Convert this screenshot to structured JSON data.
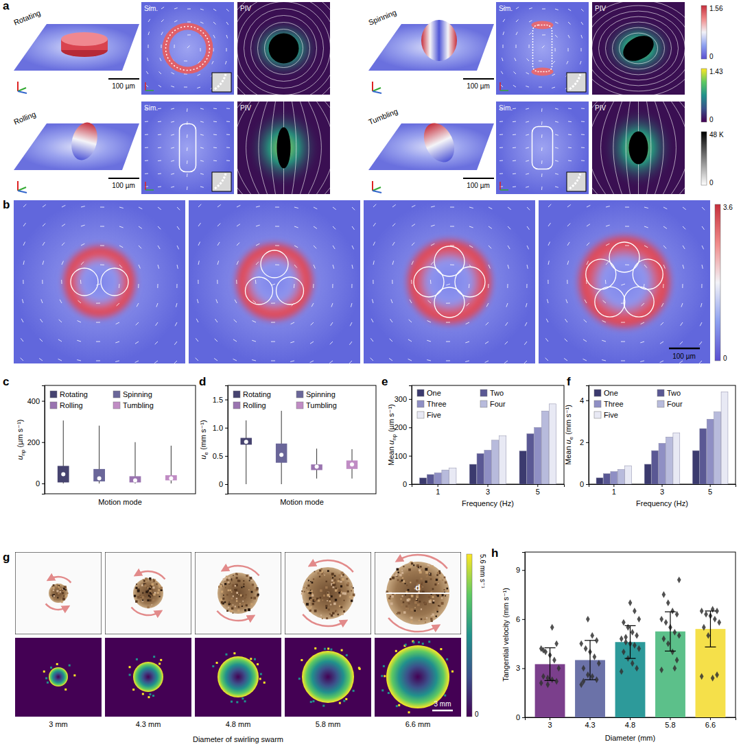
{
  "panel_letters": [
    "a",
    "b",
    "c",
    "d",
    "e",
    "f",
    "g",
    "h"
  ],
  "panel_a": {
    "modes": [
      {
        "name": "Rotating",
        "sim": "Sim.",
        "piv": "PIV",
        "scale_bar": "100 µm"
      },
      {
        "name": "Spinning",
        "sim": "Sim.",
        "piv": "PIV",
        "scale_bar": "100 µm"
      },
      {
        "name": "Rolling",
        "sim": "Sim.",
        "piv": "PIV",
        "scale_bar": "100 µm"
      },
      {
        "name": "Tumbling",
        "sim": "Sim.",
        "piv": "PIV",
        "scale_bar": "100 µm"
      }
    ],
    "colorbars": [
      {
        "ticks": [
          0,
          1.56
        ]
      },
      {
        "ticks": [
          0,
          1.43
        ]
      },
      {
        "ticks": [
          0,
          {
            "value": 48000,
            "label": "48 K"
          }
        ]
      }
    ]
  },
  "panel_b": {
    "scale_bar": "100 µm",
    "colorbar": {
      "ticks": [
        0,
        3.6
      ]
    }
  },
  "panel_g": {
    "diameters": [
      "3 mm",
      "4.3 mm",
      "4.8 mm",
      "5.8 mm",
      "6.6 mm"
    ],
    "xlabel": "Diameter of swirling swarm",
    "d_label": "d",
    "scale_bar": "3 mm",
    "colorbar": {
      "ticks": [
        0,
        {
          "value": 5.6,
          "label": "5.6 mm s⁻¹"
        }
      ]
    }
  },
  "chart_data": [
    {
      "type": "box",
      "categories": [
        "Rotating",
        "Spinning",
        "Rolling",
        "Tumbling"
      ],
      "colors": [
        "#46436f",
        "#6a6699",
        "#9a74b0",
        "#c08cc4"
      ],
      "legend": "top-left",
      "tick_labels": "y",
      "xlabel": "Motion mode",
      "ylabel": [
        {
          "text": "u",
          "style": "italic"
        },
        {
          "text": "np",
          "style": "sub"
        },
        {
          "text": " (µm s⁻¹)"
        }
      ],
      "ylim": [
        -50,
        475
      ],
      "yticks": [
        0,
        200,
        400
      ],
      "min": [
        0,
        0,
        0,
        0
      ],
      "q1": [
        5,
        10,
        5,
        15
      ],
      "q3": [
        85,
        70,
        35,
        40
      ],
      "max": [
        305,
        280,
        200,
        183
      ],
      "mean": [
        45,
        25,
        15,
        25
      ]
    },
    {
      "type": "box",
      "categories": [
        "Rotating",
        "Spinning",
        "Rolling",
        "Tumbling"
      ],
      "colors": [
        "#46436f",
        "#6a6699",
        "#9a74b0",
        "#c08cc4"
      ],
      "legend": "top-left",
      "tick_labels": "y",
      "xlabel": "Motion mode",
      "ylabel": [
        {
          "text": "u",
          "style": "italic"
        },
        {
          "text": "e",
          "style": "sub"
        },
        {
          "text": " (mm s⁻¹)"
        }
      ],
      "ylim": [
        -0.17,
        1.75
      ],
      "yticks": [
        0,
        0.5,
        {
          "value": 1,
          "label": "1.0"
        },
        1.5
      ],
      "min": [
        0,
        0,
        0.1,
        0.1
      ],
      "q1": [
        0.7,
        0.38,
        0.25,
        0.27
      ],
      "q3": [
        0.82,
        0.72,
        0.35,
        0.42
      ],
      "max": [
        1.13,
        1.3,
        0.63,
        0.62
      ],
      "mean": [
        0.75,
        0.52,
        0.31,
        0.35
      ]
    },
    {
      "type": "bar",
      "categories": [
        "1",
        "3",
        "5"
      ],
      "legend": "top-left",
      "xlabel": "Frequency (Hz)",
      "ylabel": [
        {
          "text": "Mean "
        },
        {
          "text": "u",
          "style": "italic"
        },
        {
          "text": "np",
          "style": "sub"
        },
        {
          "text": " (µm s⁻¹)"
        }
      ],
      "ylim": [
        0,
        348
      ],
      "yticks": [
        0,
        100,
        200,
        300
      ],
      "series": [
        {
          "name": "One",
          "color": "#3b3a6e",
          "values": [
            22,
            70,
            117
          ]
        },
        {
          "name": "Two",
          "color": "#5a5894",
          "values": [
            34,
            108,
            178
          ]
        },
        {
          "name": "Three",
          "color": "#8f8fc4",
          "values": [
            40,
            120,
            200
          ]
        },
        {
          "name": "Four",
          "color": "#b8bbdc",
          "values": [
            50,
            155,
            258
          ]
        },
        {
          "name": "Five",
          "color": "#e8e9f4",
          "values": [
            57,
            170,
            283
          ]
        }
      ]
    },
    {
      "type": "bar",
      "categories": [
        "1",
        "3",
        "5"
      ],
      "legend": "top-left",
      "xlabel": "Frequency (Hz)",
      "ylabel": [
        {
          "text": "Mean "
        },
        {
          "text": "u",
          "style": "italic"
        },
        {
          "text": "e",
          "style": "sub"
        },
        {
          "text": " (mm s⁻¹)"
        }
      ],
      "ylim": [
        0,
        4.71
      ],
      "yticks": [
        0,
        2,
        4
      ],
      "series": [
        {
          "name": "One",
          "color": "#3b3a6e",
          "values": [
            0.3,
            0.95,
            1.6
          ]
        },
        {
          "name": "Two",
          "color": "#5a5894",
          "values": [
            0.5,
            1.6,
            2.65
          ]
        },
        {
          "name": "Three",
          "color": "#8f8fc4",
          "values": [
            0.6,
            1.95,
            3.1
          ]
        },
        {
          "name": "Four",
          "color": "#b8bbdc",
          "values": [
            0.7,
            2.25,
            3.45
          ]
        },
        {
          "name": "Five",
          "color": "#e8e9f4",
          "values": [
            0.88,
            2.45,
            4.4
          ]
        }
      ]
    },
    {
      "type": "bar",
      "categories": [
        "3",
        "4.3",
        "4.8",
        "5.8",
        "6.6"
      ],
      "colors": [
        "#7b3f8c",
        "#6b72a8",
        "#2d9a9a",
        "#5cc08a",
        "#f5e04a"
      ],
      "xlabel": "Diameter (mm)",
      "ylabel": "Tangential velocity (mm s⁻¹)",
      "ylim": [
        0,
        10.1
      ],
      "yticks": [
        0,
        3,
        6,
        9
      ],
      "values": [
        3.25,
        3.5,
        4.6,
        5.25,
        5.4
      ],
      "errors": [
        1.0,
        1.2,
        1.0,
        1.2,
        1.1
      ],
      "points": [
        [
          2.1,
          2.2,
          2.3,
          2.4,
          2.5,
          3.0,
          3.5,
          3.8,
          4.0,
          4.2,
          4.5,
          5.5,
          2.0,
          4.1
        ],
        [
          2.0,
          2.3,
          2.5,
          2.6,
          3.0,
          3.3,
          3.7,
          4.0,
          4.2,
          4.5,
          4.7,
          5.0,
          6.0,
          2.2
        ],
        [
          2.8,
          3.0,
          3.3,
          3.6,
          4.0,
          4.2,
          4.4,
          4.5,
          4.6,
          4.8,
          5.0,
          5.2,
          5.5,
          5.8,
          6.0,
          6.5,
          7.0,
          4.9
        ],
        [
          2.9,
          3.5,
          4.0,
          4.5,
          4.8,
          5.0,
          5.2,
          5.5,
          5.8,
          6.0,
          6.3,
          6.5,
          7.0,
          7.5,
          8.4,
          3.0
        ],
        [
          2.5,
          2.6,
          2.4,
          5.0,
          5.5,
          5.8,
          6.0,
          6.2,
          6.3,
          6.5,
          6.5,
          6.6
        ]
      ]
    }
  ]
}
